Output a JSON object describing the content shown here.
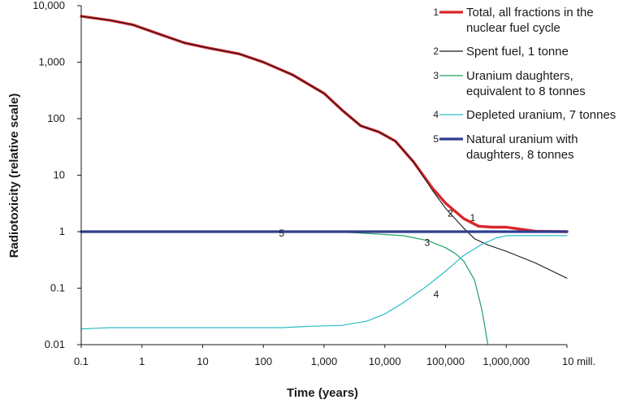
{
  "chart_data": {
    "type": "line",
    "title": "",
    "xlabel": "Time (years)",
    "ylabel": "Radiotoxicity (relative scale)",
    "xscale": "log",
    "yscale": "log",
    "xlim": [
      0.1,
      10000000
    ],
    "ylim": [
      0.01,
      10000
    ],
    "grid": false,
    "legend_position": "top-right",
    "x_ticks": [
      {
        "value": 0.1,
        "label": "0.1"
      },
      {
        "value": 1,
        "label": "1"
      },
      {
        "value": 10,
        "label": "10"
      },
      {
        "value": 100,
        "label": "100"
      },
      {
        "value": 1000,
        "label": "1,000"
      },
      {
        "value": 10000,
        "label": "10,000"
      },
      {
        "value": 100000,
        "label": "100,000"
      },
      {
        "value": 1000000,
        "label": "1,000,000"
      },
      {
        "value": 10000000,
        "label": "10 mill."
      }
    ],
    "y_ticks": [
      {
        "value": 10000,
        "label": "10,000"
      },
      {
        "value": 1000,
        "label": "1,000"
      },
      {
        "value": 100,
        "label": "100"
      },
      {
        "value": 10,
        "label": "10"
      },
      {
        "value": 1,
        "label": "1"
      },
      {
        "value": 0.1,
        "label": "0.1"
      },
      {
        "value": 0.01,
        "label": "0.01"
      }
    ],
    "series": [
      {
        "id": "1",
        "name_lines": [
          "Total, all fractions in the",
          "nuclear fuel cycle"
        ],
        "color": "#d9262c",
        "curve_label_at": {
          "x": 280000,
          "y": 1.55
        },
        "points": [
          [
            0.1,
            6500
          ],
          [
            0.3,
            5500
          ],
          [
            0.7,
            4600
          ],
          [
            2,
            3100
          ],
          [
            5,
            2200
          ],
          [
            12,
            1800
          ],
          [
            40,
            1400
          ],
          [
            100,
            1000
          ],
          [
            300,
            600
          ],
          [
            1000,
            280
          ],
          [
            2000,
            140
          ],
          [
            4000,
            75
          ],
          [
            8000,
            58
          ],
          [
            15000,
            40
          ],
          [
            30000,
            17
          ],
          [
            60000,
            6
          ],
          [
            100000,
            3.2
          ],
          [
            200000,
            1.7
          ],
          [
            350000,
            1.25
          ],
          [
            600000,
            1.2
          ],
          [
            1000000,
            1.2
          ],
          [
            3000000,
            1.02
          ],
          [
            10000000,
            1.0
          ]
        ]
      },
      {
        "id": "2",
        "name_lines": [
          "Spent fuel, 1 tonne"
        ],
        "color": "#1a1a1a",
        "curve_label_at": {
          "x": 120000,
          "y": 1.85
        },
        "points": [
          [
            0.1,
            6500
          ],
          [
            0.3,
            5500
          ],
          [
            0.7,
            4600
          ],
          [
            2,
            3100
          ],
          [
            5,
            2200
          ],
          [
            12,
            1800
          ],
          [
            40,
            1400
          ],
          [
            100,
            1000
          ],
          [
            300,
            600
          ],
          [
            1000,
            280
          ],
          [
            2000,
            140
          ],
          [
            4000,
            75
          ],
          [
            8000,
            58
          ],
          [
            15000,
            40
          ],
          [
            30000,
            17
          ],
          [
            60000,
            5.5
          ],
          [
            100000,
            2.6
          ],
          [
            200000,
            1.15
          ],
          [
            300000,
            0.75
          ],
          [
            500000,
            0.58
          ],
          [
            1000000,
            0.45
          ],
          [
            3000000,
            0.28
          ],
          [
            10000000,
            0.15
          ]
        ]
      },
      {
        "id": "3",
        "name_lines": [
          "Uranium daughters,",
          "equivalent to 8 tonnes"
        ],
        "color": "#21a065",
        "curve_label_at": {
          "x": 50000,
          "y": 0.56
        },
        "points": [
          [
            0.1,
            1
          ],
          [
            1500,
            1
          ],
          [
            5000,
            0.93
          ],
          [
            20000,
            0.85
          ],
          [
            50000,
            0.7
          ],
          [
            100000,
            0.52
          ],
          [
            150000,
            0.4
          ],
          [
            200000,
            0.3
          ],
          [
            300000,
            0.14
          ],
          [
            400000,
            0.04
          ],
          [
            500000,
            0.01
          ]
        ]
      },
      {
        "id": "4",
        "name_lines": [
          "Depleted uranium, 7 tonnes"
        ],
        "color": "#2bbcc4",
        "curve_label_at": {
          "x": 70000,
          "y": 0.068
        },
        "points": [
          [
            0.1,
            0.019
          ],
          [
            0.3,
            0.02
          ],
          [
            1,
            0.02
          ],
          [
            10,
            0.02
          ],
          [
            200,
            0.02
          ],
          [
            500,
            0.021
          ],
          [
            2000,
            0.022
          ],
          [
            5000,
            0.026
          ],
          [
            10000,
            0.035
          ],
          [
            20000,
            0.055
          ],
          [
            50000,
            0.11
          ],
          [
            100000,
            0.2
          ],
          [
            200000,
            0.38
          ],
          [
            400000,
            0.6
          ],
          [
            700000,
            0.78
          ],
          [
            1000000,
            0.85
          ],
          [
            10000000,
            0.85
          ]
        ]
      },
      {
        "id": "5",
        "name_lines": [
          "Natural uranium with",
          "daughters, 8 tonnes"
        ],
        "color": "#2f3e8e",
        "curve_label_at": {
          "x": 200,
          "y": 0.82
        },
        "points": [
          [
            0.1,
            1
          ],
          [
            10000000,
            1
          ]
        ]
      }
    ]
  }
}
